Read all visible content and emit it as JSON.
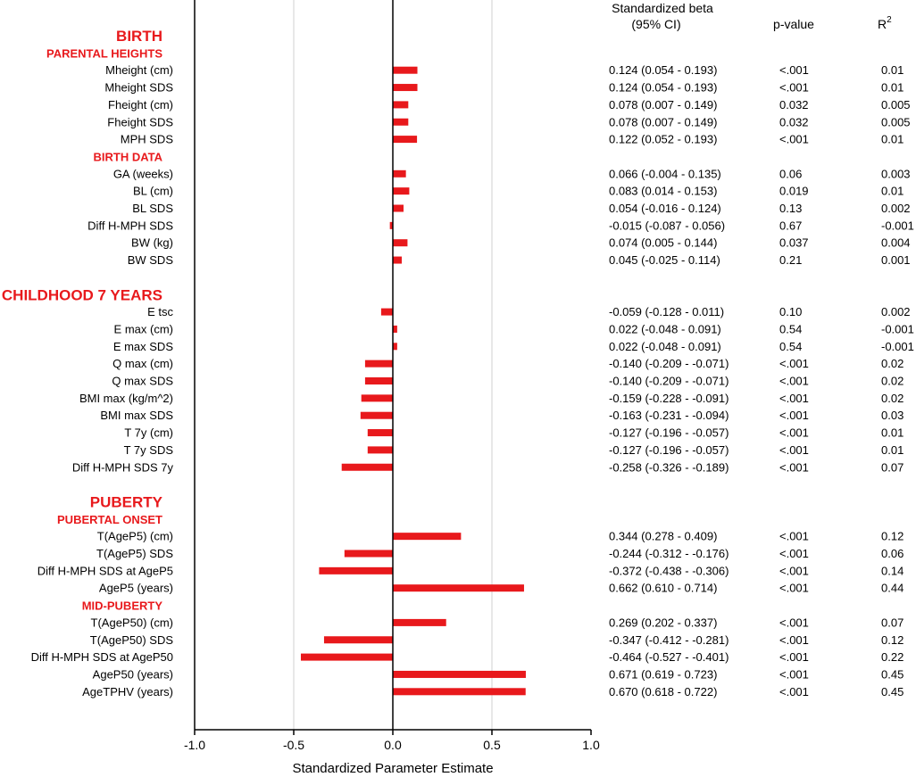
{
  "chart_data": {
    "type": "bar",
    "orientation": "horizontal",
    "xlabel": "Standardized Parameter Estimate",
    "xlim": [
      -1.0,
      1.0
    ],
    "xticks": [
      "-1.0",
      "-0.5",
      "0.0",
      "0.5",
      "1.0"
    ],
    "grid": true,
    "bar_color": "#e8191c",
    "section_color": "#e8191c",
    "columns": {
      "beta": "Standardized beta",
      "beta_sub": "(95% CI)",
      "p": "p-value",
      "r2": "R",
      "r2_sup": "2"
    },
    "rows": [
      {
        "kind": "section",
        "label": "BIRTH"
      },
      {
        "kind": "subsection",
        "label": "PARENTAL HEIGHTS"
      },
      {
        "kind": "item",
        "label": "Mheight (cm)",
        "value": 0.124,
        "ci": "0.124 (0.054 - 0.193)",
        "p": "<.001",
        "r2": "0.01"
      },
      {
        "kind": "item",
        "label": "Mheight SDS",
        "value": 0.124,
        "ci": "0.124 (0.054 - 0.193)",
        "p": "<.001",
        "r2": "0.01"
      },
      {
        "kind": "item",
        "label": "Fheight (cm)",
        "value": 0.078,
        "ci": "0.078 (0.007 - 0.149)",
        "p": "0.032",
        "r2": "0.005"
      },
      {
        "kind": "item",
        "label": "Fheight SDS",
        "value": 0.078,
        "ci": "0.078 (0.007 - 0.149)",
        "p": "0.032",
        "r2": "0.005"
      },
      {
        "kind": "item",
        "label": "MPH SDS",
        "value": 0.122,
        "ci": "0.122 (0.052 - 0.193)",
        "p": "<.001",
        "r2": "0.01"
      },
      {
        "kind": "subsection",
        "label": "BIRTH DATA"
      },
      {
        "kind": "item",
        "label": "GA (weeks)",
        "value": 0.066,
        "ci": "0.066 (-0.004 - 0.135)",
        "p": "0.06",
        "r2": "0.003"
      },
      {
        "kind": "item",
        "label": "BL (cm)",
        "value": 0.083,
        "ci": "0.083 (0.014 - 0.153)",
        "p": "0.019",
        "r2": "0.01"
      },
      {
        "kind": "item",
        "label": "BL SDS",
        "value": 0.054,
        "ci": "0.054 (-0.016 - 0.124)",
        "p": "0.13",
        "r2": "0.002"
      },
      {
        "kind": "item",
        "label": "Diff H-MPH SDS",
        "value": -0.015,
        "ci": "-0.015 (-0.087 - 0.056)",
        "p": "0.67",
        "r2": "-0.001"
      },
      {
        "kind": "item",
        "label": "BW (kg)",
        "value": 0.074,
        "ci": "0.074 (0.005 - 0.144)",
        "p": "0.037",
        "r2": "0.004"
      },
      {
        "kind": "item",
        "label": "BW SDS",
        "value": 0.045,
        "ci": "0.045 (-0.025 - 0.114)",
        "p": "0.21",
        "r2": "0.001"
      },
      {
        "kind": "gap"
      },
      {
        "kind": "section",
        "label": "CHILDHOOD 7 YEARS"
      },
      {
        "kind": "item",
        "label": "E tsc",
        "value": -0.059,
        "ci": "-0.059 (-0.128 - 0.011)",
        "p": "0.10",
        "r2": "0.002"
      },
      {
        "kind": "item",
        "label": "E max (cm)",
        "value": 0.022,
        "ci": "0.022 (-0.048 - 0.091)",
        "p": "0.54",
        "r2": "-0.001"
      },
      {
        "kind": "item",
        "label": "E max SDS",
        "value": 0.022,
        "ci": "0.022 (-0.048 - 0.091)",
        "p": "0.54",
        "r2": "-0.001"
      },
      {
        "kind": "item",
        "label": "Q max (cm)",
        "value": -0.14,
        "ci": "-0.140 (-0.209 - -0.071)",
        "p": "<.001",
        "r2": "0.02"
      },
      {
        "kind": "item",
        "label": "Q max SDS",
        "value": -0.14,
        "ci": "-0.140 (-0.209 - -0.071)",
        "p": "<.001",
        "r2": "0.02"
      },
      {
        "kind": "item",
        "label": "BMI max (kg/m^2)",
        "value": -0.159,
        "ci": "-0.159 (-0.228 - -0.091)",
        "p": "<.001",
        "r2": "0.02"
      },
      {
        "kind": "item",
        "label": "BMI max SDS",
        "value": -0.163,
        "ci": "-0.163 (-0.231 - -0.094)",
        "p": "<.001",
        "r2": "0.03"
      },
      {
        "kind": "item",
        "label": "T 7y (cm)",
        "value": -0.127,
        "ci": "-0.127 (-0.196 - -0.057)",
        "p": "<.001",
        "r2": "0.01"
      },
      {
        "kind": "item",
        "label": "T 7y SDS",
        "value": -0.127,
        "ci": "-0.127 (-0.196 - -0.057)",
        "p": "<.001",
        "r2": "0.01"
      },
      {
        "kind": "item",
        "label": "Diff H-MPH SDS 7y",
        "value": -0.258,
        "ci": "-0.258 (-0.326 - -0.189)",
        "p": "<.001",
        "r2": "0.07"
      },
      {
        "kind": "gap"
      },
      {
        "kind": "section",
        "label": "PUBERTY"
      },
      {
        "kind": "subsection",
        "label": "PUBERTAL ONSET"
      },
      {
        "kind": "item",
        "label": "T(AgeP5) (cm)",
        "value": 0.344,
        "ci": "0.344 (0.278 - 0.409)",
        "p": "<.001",
        "r2": "0.12"
      },
      {
        "kind": "item",
        "label": "T(AgeP5) SDS",
        "value": -0.244,
        "ci": "-0.244 (-0.312 - -0.176)",
        "p": "<.001",
        "r2": "0.06"
      },
      {
        "kind": "item",
        "label": "Diff H-MPH SDS at AgeP5",
        "value": -0.372,
        "ci": "-0.372 (-0.438 - -0.306)",
        "p": "<.001",
        "r2": "0.14"
      },
      {
        "kind": "item",
        "label": "AgeP5 (years)",
        "value": 0.662,
        "ci": "0.662 (0.610 - 0.714)",
        "p": "<.001",
        "r2": "0.44"
      },
      {
        "kind": "subsection",
        "label": "MID-PUBERTY"
      },
      {
        "kind": "item",
        "label": "T(AgeP50) (cm)",
        "value": 0.269,
        "ci": "0.269 (0.202 - 0.337)",
        "p": "<.001",
        "r2": "0.07"
      },
      {
        "kind": "item",
        "label": "T(AgeP50) SDS",
        "value": -0.347,
        "ci": "-0.347 (-0.412 - -0.281)",
        "p": "<.001",
        "r2": "0.12"
      },
      {
        "kind": "item",
        "label": "Diff H-MPH SDS at AgeP50",
        "value": -0.464,
        "ci": "-0.464 (-0.527 - -0.401)",
        "p": "<.001",
        "r2": "0.22"
      },
      {
        "kind": "item",
        "label": "AgeP50 (years)",
        "value": 0.671,
        "ci": "0.671 (0.619 - 0.723)",
        "p": "<.001",
        "r2": "0.45"
      },
      {
        "kind": "item",
        "label": "AgeTPHV (years)",
        "value": 0.67,
        "ci": "0.670 (0.618 - 0.722)",
        "p": "<.001",
        "r2": "0.45"
      }
    ]
  }
}
